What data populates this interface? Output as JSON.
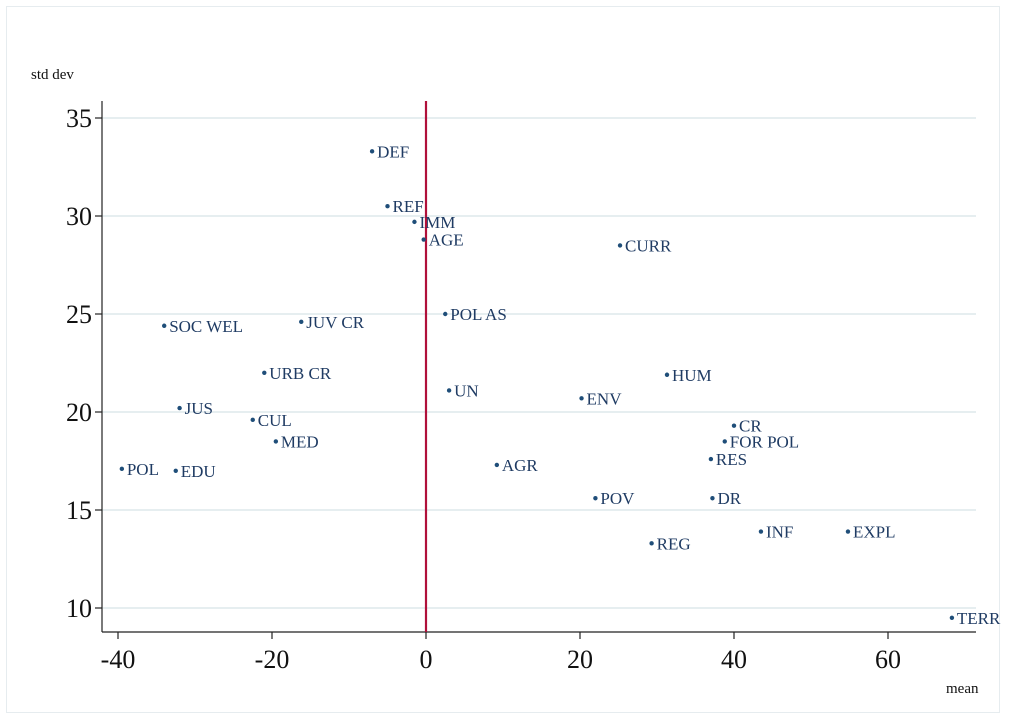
{
  "chart_data": {
    "type": "scatter",
    "title": "",
    "xlabel": "mean",
    "ylabel": "std dev",
    "xlim": [
      -41,
      71
    ],
    "ylim": [
      9,
      36
    ],
    "xticks": [
      -40,
      -20,
      0,
      20,
      40,
      60
    ],
    "yticks": [
      10,
      15,
      20,
      25,
      30,
      35
    ],
    "xtick_labels": [
      "-40",
      "-20",
      "0",
      "20",
      "40",
      "60"
    ],
    "ytick_labels": [
      "10",
      "15",
      "20",
      "25",
      "30",
      "35"
    ],
    "grid": "horizontal",
    "reference_line": {
      "axis": "x",
      "value": 0,
      "color": "#b0103a"
    },
    "marker_color": "#1f4e79",
    "label_color": "#1f3b63",
    "grid_color": "#dde8ec",
    "points": [
      {
        "label": "DEF",
        "x": -7.0,
        "y": 33.3
      },
      {
        "label": "REF",
        "x": -5.0,
        "y": 30.5
      },
      {
        "label": "IMM",
        "x": -1.5,
        "y": 29.7
      },
      {
        "label": "AGE",
        "x": -0.3,
        "y": 28.8
      },
      {
        "label": "CURR",
        "x": 25.2,
        "y": 28.5
      },
      {
        "label": "POL AS",
        "x": 2.5,
        "y": 25.0
      },
      {
        "label": "SOC WEL",
        "x": -34.0,
        "y": 24.4
      },
      {
        "label": "JUV CR",
        "x": -16.2,
        "y": 24.6
      },
      {
        "label": "URB CR",
        "x": -21.0,
        "y": 22.0
      },
      {
        "label": "HUM",
        "x": 31.3,
        "y": 21.9
      },
      {
        "label": "UN",
        "x": 3.0,
        "y": 21.1
      },
      {
        "label": "ENV",
        "x": 20.2,
        "y": 20.7
      },
      {
        "label": "JUS",
        "x": -32.0,
        "y": 20.2
      },
      {
        "label": "CUL",
        "x": -22.5,
        "y": 19.6
      },
      {
        "label": "CR",
        "x": 40.0,
        "y": 19.3
      },
      {
        "label": "MED",
        "x": -19.5,
        "y": 18.5
      },
      {
        "label": "FOR POL",
        "x": 38.8,
        "y": 18.5
      },
      {
        "label": "RES",
        "x": 37.0,
        "y": 17.6
      },
      {
        "label": "POL",
        "x": -39.5,
        "y": 17.1
      },
      {
        "label": "EDU",
        "x": -32.5,
        "y": 17.0
      },
      {
        "label": "AGR",
        "x": 9.2,
        "y": 17.3
      },
      {
        "label": "POV",
        "x": 22.0,
        "y": 15.6
      },
      {
        "label": "DR",
        "x": 37.2,
        "y": 15.6
      },
      {
        "label": "INF",
        "x": 43.5,
        "y": 13.9
      },
      {
        "label": "EXPL",
        "x": 54.8,
        "y": 13.9
      },
      {
        "label": "REG",
        "x": 29.3,
        "y": 13.3
      },
      {
        "label": "TERR",
        "x": 68.3,
        "y": 9.5
      }
    ]
  }
}
